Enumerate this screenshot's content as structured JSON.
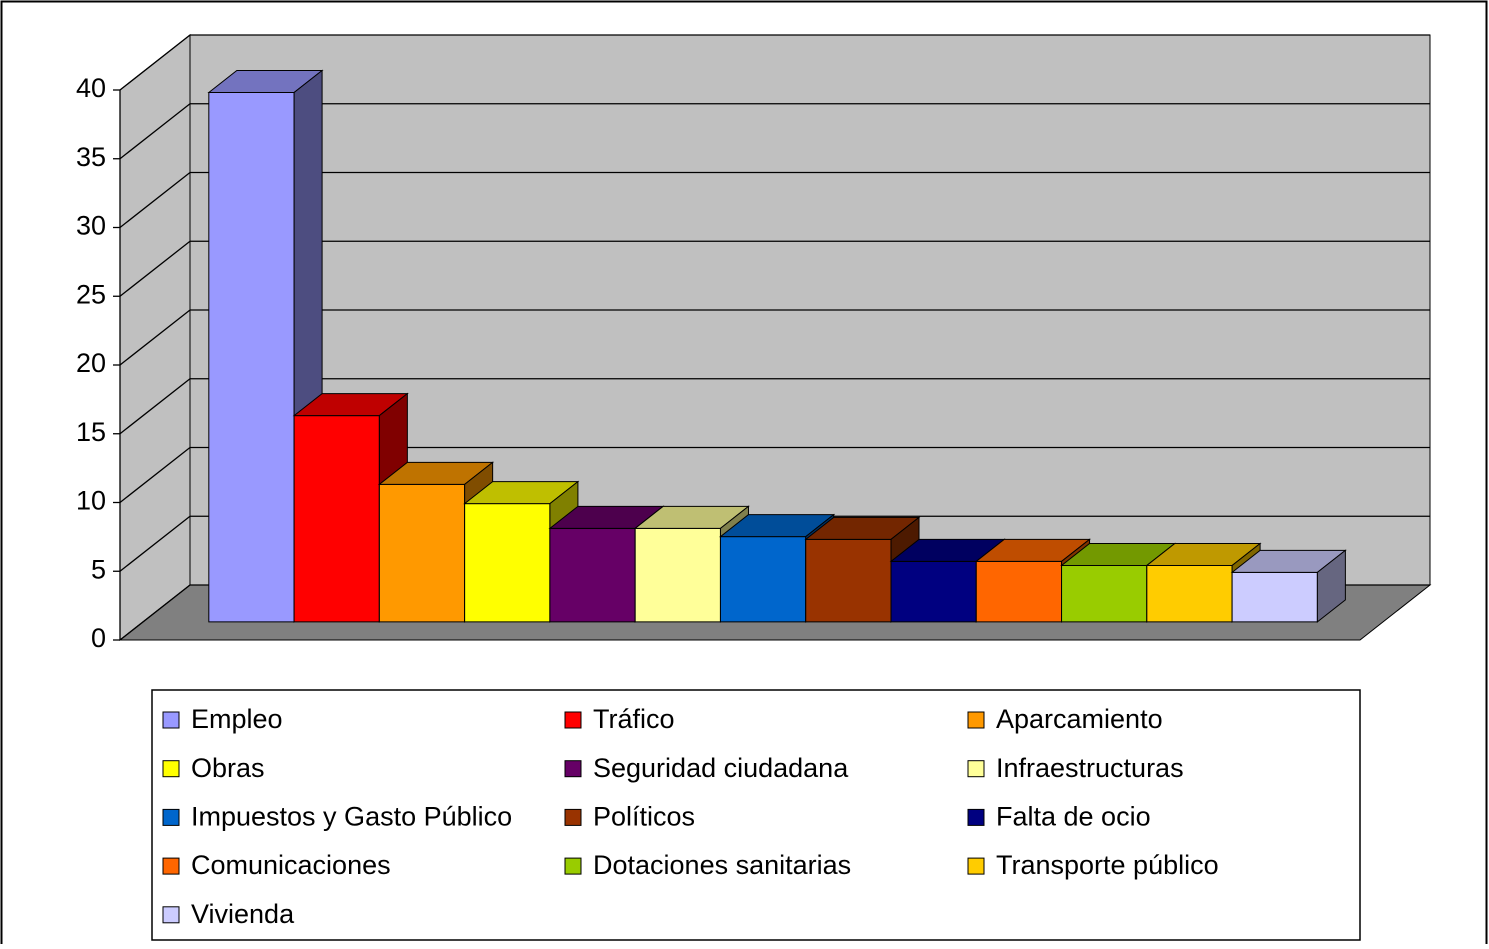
{
  "chart_data": {
    "type": "bar",
    "categories": [
      "Empleo",
      "Tráfico",
      "Aparcamiento",
      "Obras",
      "Seguridad ciudadana",
      "Infraestructuras",
      "Impuestos y Gasto Público",
      "Políticos",
      "Falta de ocio",
      "Comunicaciones",
      "Dotaciones sanitarias",
      "Transporte público",
      "Vivienda"
    ],
    "values": [
      38.5,
      15,
      10,
      8.6,
      6.8,
      6.8,
      6.2,
      6,
      4.4,
      4.4,
      4.1,
      4.1,
      3.6
    ],
    "colors": [
      "#9999ff",
      "#ff0000",
      "#ff9900",
      "#ffff00",
      "#660066",
      "#ffff99",
      "#0066cc",
      "#993300",
      "#000080",
      "#ff6600",
      "#99cc00",
      "#ffcc00",
      "#ccccff"
    ],
    "ylim": [
      0,
      40
    ],
    "yticks": [
      0,
      5,
      10,
      15,
      20,
      25,
      30,
      35,
      40
    ],
    "grid": true,
    "legend": "bottom"
  }
}
